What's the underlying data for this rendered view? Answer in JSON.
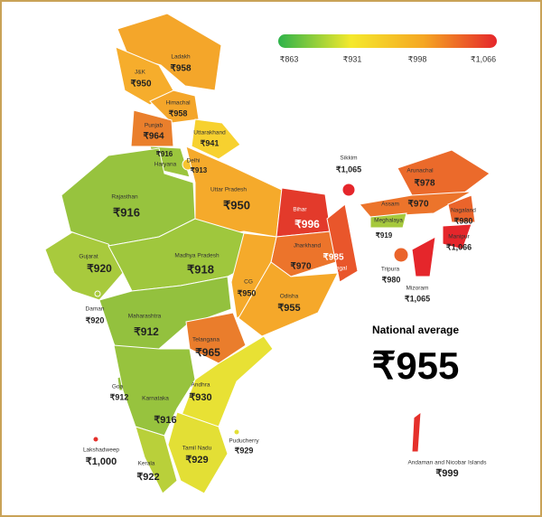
{
  "legend": {
    "gradient": [
      "#2db34a",
      "#f5e92c",
      "#f5a623",
      "#e5262b"
    ],
    "ticks": [
      "₹863",
      "₹931",
      "₹998",
      "₹1,066"
    ]
  },
  "national_average": {
    "label": "National average",
    "value": "₹955"
  },
  "states": [
    {
      "name": "Ladakh",
      "price": "₹958",
      "color": "#f4a62a"
    },
    {
      "name": "J&K",
      "price": "₹950",
      "color": "#f6ad2c"
    },
    {
      "name": "Himachal",
      "price": "₹958",
      "color": "#f4a62a"
    },
    {
      "name": "Punjab",
      "price": "₹964",
      "color": "#ea7f2c"
    },
    {
      "name": "Uttarakhand",
      "price": "₹941",
      "color": "#f7d12f"
    },
    {
      "name": "Haryana",
      "price": "₹916",
      "color": "#9bc53d"
    },
    {
      "name": "Delhi",
      "price": "₹913",
      "color": "#f7c430"
    },
    {
      "name": "Rajasthan",
      "price": "₹916",
      "color": "#97c33e"
    },
    {
      "name": "Uttar Pradesh",
      "price": "₹950",
      "color": "#f5aa2b"
    },
    {
      "name": "Bihar",
      "price": "₹996",
      "color": "#e33a2b"
    },
    {
      "name": "Sikkim",
      "price": "₹1,065",
      "color": "#e5262b"
    },
    {
      "name": "Arunachal",
      "price": "₹978",
      "color": "#eb6a2b"
    },
    {
      "name": "Assam",
      "price": "₹970",
      "color": "#ec742b"
    },
    {
      "name": "Meghalaya",
      "price": "₹919",
      "color": "#a6c93d"
    },
    {
      "name": "Nagaland",
      "price": "₹980",
      "color": "#ea642b"
    },
    {
      "name": "Manipur",
      "price": "₹1,066",
      "color": "#e5262b"
    },
    {
      "name": "Tripura",
      "price": "₹980",
      "color": "#ea642b"
    },
    {
      "name": "Mizoram",
      "price": "₹1,065",
      "color": "#e5262b"
    },
    {
      "name": "Jharkhand",
      "price": "₹970",
      "color": "#ec742b"
    },
    {
      "name": "Bengal",
      "price": "₹985",
      "color": "#e9562b"
    },
    {
      "name": "Gujarat",
      "price": "₹920",
      "color": "#a8ca3d"
    },
    {
      "name": "Madhya Pradesh",
      "price": "₹918",
      "color": "#9fc73d"
    },
    {
      "name": "CG",
      "price": "₹950",
      "color": "#f5aa2b"
    },
    {
      "name": "Odisha",
      "price": "₹955",
      "color": "#f5a82a"
    },
    {
      "name": "Daman",
      "price": "₹920",
      "color": "#a8ca3d"
    },
    {
      "name": "Maharashtra",
      "price": "₹912",
      "color": "#93c13e"
    },
    {
      "name": "Telangana",
      "price": "₹965",
      "color": "#ea7d2c"
    },
    {
      "name": "Goa",
      "price": "₹912",
      "color": "#93c13e"
    },
    {
      "name": "Karnataka",
      "price": "₹916",
      "color": "#97c33e"
    },
    {
      "name": "Andhra",
      "price": "₹930",
      "color": "#e8e134"
    },
    {
      "name": "Tamil Nadu",
      "price": "₹929",
      "color": "#e3df35"
    },
    {
      "name": "Puducherry",
      "price": "₹929",
      "color": "#e3df35"
    },
    {
      "name": "Kerala",
      "price": "₹922",
      "color": "#b9d03a"
    },
    {
      "name": "Lakshadweep",
      "price": "₹1,000",
      "color": "#e5302b"
    },
    {
      "name": "Andaman and Nicobar Islands",
      "price": "₹999",
      "color": "#e5302b"
    }
  ]
}
